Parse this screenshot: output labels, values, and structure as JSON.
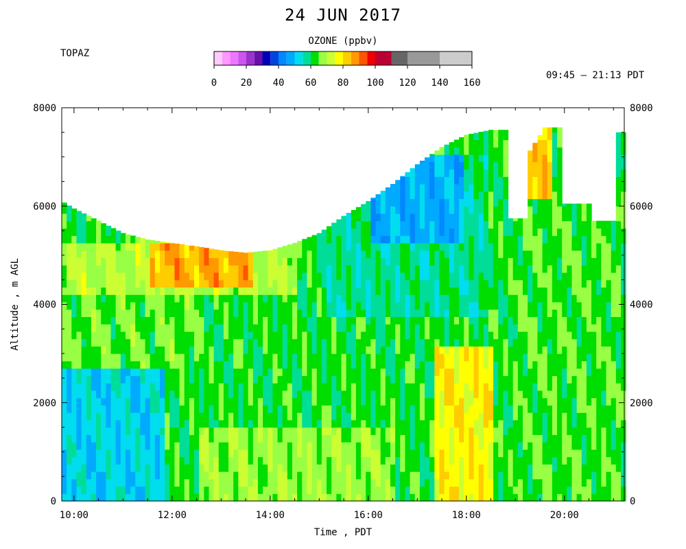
{
  "header": {
    "title": "24 JUN 2017",
    "site": "TOPAZ",
    "time_range": "09:45 – 21:13 PDT"
  },
  "colorbar": {
    "title": "OZONE (ppbv)",
    "tick_labels": [
      "0",
      "20",
      "40",
      "60",
      "80",
      "100",
      "120",
      "140",
      "160"
    ],
    "bins": [
      {
        "from": 0,
        "to": 5,
        "color": "#ffccff"
      },
      {
        "from": 5,
        "to": 10,
        "color": "#ff99ff"
      },
      {
        "from": 10,
        "to": 15,
        "color": "#ee77ff"
      },
      {
        "from": 15,
        "to": 20,
        "color": "#cc55ee"
      },
      {
        "from": 20,
        "to": 25,
        "color": "#9933cc"
      },
      {
        "from": 25,
        "to": 30,
        "color": "#6611aa"
      },
      {
        "from": 30,
        "to": 35,
        "color": "#0000bb"
      },
      {
        "from": 35,
        "to": 40,
        "color": "#0044dd"
      },
      {
        "from": 40,
        "to": 45,
        "color": "#0088ff"
      },
      {
        "from": 45,
        "to": 50,
        "color": "#00aaff"
      },
      {
        "from": 50,
        "to": 55,
        "color": "#00ddee"
      },
      {
        "from": 55,
        "to": 60,
        "color": "#00dd99"
      },
      {
        "from": 60,
        "to": 65,
        "color": "#00dd00"
      },
      {
        "from": 65,
        "to": 70,
        "color": "#99ff44"
      },
      {
        "from": 70,
        "to": 75,
        "color": "#ccff33"
      },
      {
        "from": 75,
        "to": 80,
        "color": "#ffff00"
      },
      {
        "from": 80,
        "to": 85,
        "color": "#ffcc00"
      },
      {
        "from": 85,
        "to": 90,
        "color": "#ff9900"
      },
      {
        "from": 90,
        "to": 95,
        "color": "#ff5500"
      },
      {
        "from": 95,
        "to": 100,
        "color": "#ee0000"
      },
      {
        "from": 100,
        "to": 110,
        "color": "#bb0033"
      },
      {
        "from": 110,
        "to": 120,
        "color": "#666666"
      },
      {
        "from": 120,
        "to": 140,
        "color": "#999999"
      },
      {
        "from": 140,
        "to": 160,
        "color": "#cccccc"
      }
    ]
  },
  "chart_data": {
    "type": "heatmap",
    "title": "24 JUN 2017",
    "variable": "OZONE (ppbv)",
    "xlabel": "Time , PDT",
    "ylabel": "Altitude , m AGL",
    "x_ticks": [
      "10:00",
      "12:00",
      "14:00",
      "16:00",
      "18:00",
      "20:00"
    ],
    "x_tick_hours": [
      10,
      12,
      14,
      16,
      18,
      20
    ],
    "xlim_hours": [
      9.75,
      21.22
    ],
    "y_ticks": [
      0,
      2000,
      4000,
      6000,
      8000
    ],
    "ylim": [
      0,
      8000
    ],
    "grid": false,
    "clim": [
      0,
      160
    ],
    "data_ceiling": {
      "hours": [
        9.75,
        10.0,
        10.5,
        11.0,
        11.5,
        12.0,
        12.5,
        13.0,
        13.5,
        14.0,
        14.5,
        15.0,
        15.5,
        16.0,
        16.5,
        17.0,
        17.5,
        18.0,
        18.5,
        18.8,
        18.85,
        19.2,
        19.25,
        19.6,
        19.65,
        19.95,
        20.0,
        20.55,
        20.6,
        21.0,
        21.05,
        21.22
      ],
      "altitude_m": [
        6100,
        5950,
        5700,
        5450,
        5320,
        5250,
        5180,
        5100,
        5050,
        5100,
        5250,
        5450,
        5800,
        6100,
        6450,
        6850,
        7200,
        7450,
        7550,
        7550,
        5750,
        5750,
        7050,
        7600,
        7600,
        7600,
        6050,
        6050,
        5700,
        5700,
        7500,
        7500
      ]
    },
    "regions": [
      {
        "hours": [
          9.75,
          11.8
        ],
        "altitude_m": [
          0,
          2700
        ],
        "ozone_ppbv": 52,
        "note": "low cyan/turquoise layer"
      },
      {
        "hours": [
          9.75,
          12.5
        ],
        "altitude_m": [
          2700,
          4200
        ],
        "ozone_ppbv": 65
      },
      {
        "hours": [
          9.75,
          14.5
        ],
        "altitude_m": [
          4200,
          5300
        ],
        "ozone_ppbv": 70
      },
      {
        "hours": [
          11.5,
          13.6
        ],
        "altitude_m": [
          4300,
          5200
        ],
        "ozone_ppbv": 85
      },
      {
        "hours": [
          12.5,
          16.5
        ],
        "altitude_m": [
          0,
          1500
        ],
        "ozone_ppbv": 68
      },
      {
        "hours": [
          15.0,
          18.5
        ],
        "altitude_m": [
          3800,
          7000
        ],
        "ozone_ppbv": 58
      },
      {
        "hours": [
          16.0,
          18.0
        ],
        "altitude_m": [
          5200,
          7000
        ],
        "ozone_ppbv": 48
      },
      {
        "hours": [
          17.3,
          18.6
        ],
        "altitude_m": [
          0,
          3200
        ],
        "ozone_ppbv": 78
      },
      {
        "hours": [
          19.0,
          21.2
        ],
        "altitude_m": [
          0,
          6000
        ],
        "ozone_ppbv": 64
      },
      {
        "hours": [
          19.3,
          19.8
        ],
        "altitude_m": [
          6200,
          7600
        ],
        "ozone_ppbv": 82
      }
    ]
  }
}
